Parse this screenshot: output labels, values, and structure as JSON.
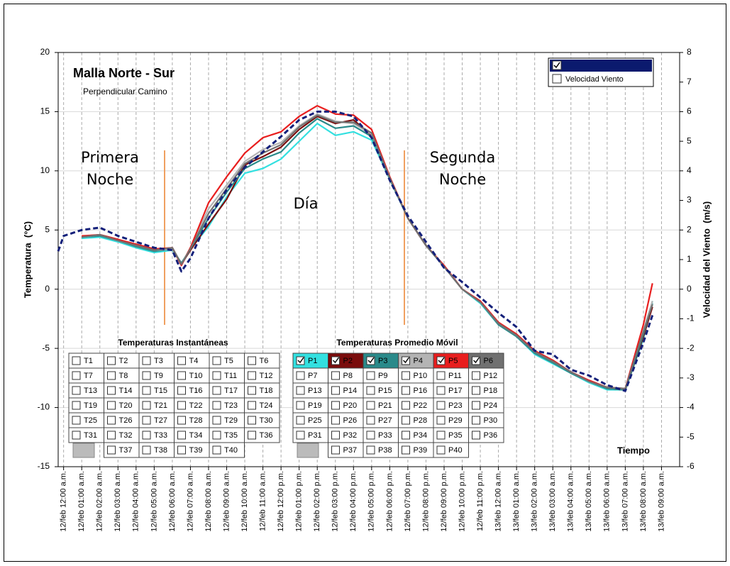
{
  "chart_data": {
    "type": "line",
    "title": "Malla  Norte - Sur",
    "subtitle": "Perpendicular Camino",
    "xlabel": "Tiempo",
    "ylabel": "Temperatura  (°C)",
    "y2label": "Velocidad del Viento  (m/s)",
    "annotations": [
      "Primera Noche",
      "Día",
      "Segunda Noche"
    ],
    "x": [
      -0.3,
      0,
      1,
      2,
      3,
      4,
      5,
      6,
      6.5,
      7,
      8,
      9,
      10,
      11,
      12,
      13,
      14,
      15,
      16,
      17,
      18,
      19,
      20,
      21,
      22,
      23,
      24,
      25,
      26,
      27,
      28,
      29,
      30,
      31,
      32,
      32.5
    ],
    "xlim": [
      -0.3,
      34
    ],
    "xticks": [
      {
        "value": 0,
        "label": "12/feb 12:00 a.m."
      },
      {
        "value": 1,
        "label": "12/feb 01:00 a.m."
      },
      {
        "value": 2,
        "label": "12/feb 02:00 a.m."
      },
      {
        "value": 3,
        "label": "12/feb 03:00 a.m."
      },
      {
        "value": 4,
        "label": "12/feb 04:00 a.m."
      },
      {
        "value": 5,
        "label": "12/feb 05:00 a.m."
      },
      {
        "value": 6,
        "label": "12/feb 06:00 a.m."
      },
      {
        "value": 7,
        "label": "12/feb 07:00 a.m."
      },
      {
        "value": 8,
        "label": "12/feb 08:00 a.m."
      },
      {
        "value": 9,
        "label": "12/feb 09:00 a.m."
      },
      {
        "value": 10,
        "label": "12/feb 10:00 a.m."
      },
      {
        "value": 11,
        "label": "12/feb 11:00 a.m."
      },
      {
        "value": 12,
        "label": "12/feb 12:00 p.m."
      },
      {
        "value": 13,
        "label": "12/feb 01:00 p.m."
      },
      {
        "value": 14,
        "label": "12/feb 02:00 p.m."
      },
      {
        "value": 15,
        "label": "12/feb 03:00 p.m."
      },
      {
        "value": 16,
        "label": "12/feb 04:00 p.m."
      },
      {
        "value": 17,
        "label": "12/feb 05:00 p.m."
      },
      {
        "value": 18,
        "label": "12/feb 06:00 p.m."
      },
      {
        "value": 19,
        "label": "12/feb 07:00 p.m."
      },
      {
        "value": 20,
        "label": "12/feb 08:00 p.m."
      },
      {
        "value": 21,
        "label": "12/feb 09:00 p.m."
      },
      {
        "value": 22,
        "label": "12/feb 10:00 p.m."
      },
      {
        "value": 23,
        "label": "12/feb 11:00 p.m."
      },
      {
        "value": 24,
        "label": "13/feb 12:00 a.m."
      },
      {
        "value": 25,
        "label": "13/feb 01:00 a.m."
      },
      {
        "value": 26,
        "label": "13/feb 02:00 a.m."
      },
      {
        "value": 27,
        "label": "13/feb 03:00 a.m."
      },
      {
        "value": 28,
        "label": "13/feb 04:00 a.m."
      },
      {
        "value": 29,
        "label": "13/feb 05:00 a.m."
      },
      {
        "value": 30,
        "label": "13/feb 06:00 a.m."
      },
      {
        "value": 31,
        "label": "13/feb 07:00 a.m."
      },
      {
        "value": 32,
        "label": "13/feb 08:00 a.m."
      },
      {
        "value": 33,
        "label": "13/feb 09:00 a.m."
      }
    ],
    "ylim": [
      -15,
      20
    ],
    "yticks": [
      -15,
      -10,
      -5,
      0,
      5,
      10,
      15,
      20
    ],
    "y2lim": [
      -6,
      8
    ],
    "y2ticks": [
      -6,
      -5,
      -4,
      -3,
      -2,
      -1,
      0,
      1,
      2,
      3,
      4,
      5,
      6,
      7,
      8
    ],
    "grid": true,
    "series": [
      {
        "color": "#33e0e0",
        "values": [
          null,
          null,
          4.3,
          4.4,
          4.0,
          3.5,
          3.1,
          3.3,
          2.2,
          3.4,
          5.3,
          7.8,
          9.8,
          10.2,
          11.0,
          12.5,
          14.0,
          13.0,
          13.3,
          12.6,
          9.3,
          6.0,
          3.7,
          1.9,
          0.0,
          -1.2,
          -3.0,
          -4.0,
          -5.5,
          -6.3,
          -7.1,
          -7.9,
          -8.5,
          -8.5,
          -4.2,
          -1.0
        ]
      },
      {
        "color": "#7a0c0c",
        "values": [
          null,
          null,
          4.4,
          4.6,
          4.2,
          3.6,
          3.3,
          3.5,
          2.1,
          3.3,
          5.5,
          7.6,
          10.5,
          11.2,
          12.0,
          13.5,
          14.6,
          14.0,
          14.3,
          13.0,
          9.4,
          6.0,
          3.7,
          1.9,
          0.0,
          -1.1,
          -2.9,
          -3.9,
          -5.4,
          -6.2,
          -7.0,
          -7.8,
          -8.4,
          -8.5,
          -4.0,
          -1.5
        ]
      },
      {
        "color": "#2a8a8a",
        "values": [
          null,
          null,
          4.4,
          4.5,
          4.1,
          3.6,
          3.2,
          3.4,
          2.2,
          3.4,
          6.0,
          8.2,
          10.2,
          11.0,
          11.6,
          13.2,
          14.4,
          13.6,
          13.8,
          12.9,
          9.3,
          6.0,
          3.7,
          1.9,
          0.0,
          -1.1,
          -3.0,
          -4.0,
          -5.4,
          -6.2,
          -7.1,
          -7.8,
          -8.4,
          -8.5,
          -3.8,
          -1.2
        ]
      },
      {
        "color": "#b4b4b4",
        "values": [
          null,
          null,
          4.4,
          4.6,
          4.1,
          3.7,
          3.3,
          3.4,
          2.1,
          3.5,
          6.8,
          8.8,
          10.8,
          11.8,
          12.4,
          13.8,
          14.8,
          14.2,
          14.0,
          13.1,
          9.4,
          6.0,
          3.7,
          1.9,
          0.0,
          -1.1,
          -2.9,
          -3.9,
          -5.3,
          -6.1,
          -7.0,
          -7.8,
          -8.3,
          -8.4,
          -3.5,
          -1.0
        ]
      },
      {
        "color": "#e81e1e",
        "values": [
          null,
          null,
          4.5,
          4.6,
          4.2,
          3.8,
          3.4,
          3.5,
          2.0,
          3.5,
          7.3,
          9.5,
          11.5,
          12.8,
          13.3,
          14.6,
          15.5,
          14.8,
          14.7,
          13.5,
          9.5,
          6.0,
          3.7,
          2.0,
          0.0,
          -1.0,
          -2.8,
          -3.8,
          -5.2,
          -6.0,
          -7.0,
          -7.7,
          -8.3,
          -8.4,
          -3.0,
          0.5
        ]
      },
      {
        "color": "#707070",
        "values": [
          null,
          null,
          4.4,
          4.6,
          4.1,
          3.7,
          3.3,
          3.5,
          2.1,
          3.4,
          6.4,
          8.5,
          10.6,
          11.5,
          12.2,
          13.7,
          14.7,
          14.1,
          14.1,
          13.2,
          9.4,
          6.0,
          3.7,
          1.9,
          0.0,
          -1.1,
          -2.9,
          -3.9,
          -5.3,
          -6.1,
          -7.0,
          -7.8,
          -8.3,
          -8.4,
          -3.6,
          -1.3
        ]
      },
      {
        "color": "#14207a",
        "dashed": true,
        "values": [
          3.2,
          4.5,
          5.0,
          5.2,
          4.5,
          4.0,
          3.5,
          3.3,
          1.5,
          2.6,
          6.0,
          8.4,
          10.3,
          11.6,
          12.9,
          14.3,
          15.0,
          15.0,
          14.6,
          12.8,
          9.2,
          6.2,
          4.0,
          1.8,
          0.6,
          -0.7,
          -2.0,
          -3.2,
          -5.2,
          -5.5,
          -6.8,
          -7.3,
          -8.1,
          -8.6,
          -4.5,
          -2.2
        ]
      }
    ],
    "legend": {
      "position": "top-right",
      "entries": [
        {
          "checked": true,
          "color": "#0b1a6e"
        },
        {
          "label": "Velocidad Viento",
          "checked": false
        }
      ]
    },
    "checkbox_panels": [
      {
        "title": "Temperaturas Instantáneas",
        "items": [
          "T1",
          "T2",
          "T3",
          "T4",
          "T5",
          "T6",
          "T7",
          "T8",
          "T9",
          "T10",
          "T11",
          "T12",
          "T13",
          "T14",
          "T15",
          "T16",
          "T17",
          "T18",
          "T19",
          "T20",
          "T21",
          "T22",
          "T23",
          "T24",
          "T25",
          "T26",
          "T27",
          "T28",
          "T29",
          "T30",
          "T31",
          "T32",
          "T33",
          "T34",
          "T35",
          "T36",
          "T37",
          "T38",
          "T39",
          "T40"
        ],
        "checked": [
          false,
          false,
          false,
          false,
          false,
          false,
          false,
          false,
          false,
          false,
          false,
          false,
          false,
          false,
          false,
          false,
          false,
          false,
          false,
          false,
          false,
          false,
          false,
          false,
          false,
          false,
          false,
          false,
          false,
          false,
          false,
          false,
          false,
          false,
          false,
          false,
          false,
          false,
          false,
          false
        ]
      },
      {
        "title": "Temperaturas Promedio Móvil",
        "items": [
          "P1",
          "P2",
          "P3",
          "P4",
          "P5",
          "P6",
          "P7",
          "P8",
          "P9",
          "P10",
          "P11",
          "P12",
          "P13",
          "P14",
          "P15",
          "P16",
          "P17",
          "P18",
          "P19",
          "P20",
          "P21",
          "P22",
          "P23",
          "P24",
          "P25",
          "P26",
          "P27",
          "P28",
          "P29",
          "P30",
          "P31",
          "P32",
          "P33",
          "P34",
          "P35",
          "P36",
          "P37",
          "P38",
          "P39",
          "P40"
        ],
        "checked": [
          true,
          true,
          true,
          true,
          true,
          true,
          false,
          false,
          false,
          false,
          false,
          false,
          false,
          false,
          false,
          false,
          false,
          false,
          false,
          false,
          false,
          false,
          false,
          false,
          false,
          false,
          false,
          false,
          false,
          false,
          false,
          false,
          false,
          false,
          false,
          false,
          false,
          false,
          false,
          false
        ]
      }
    ]
  }
}
